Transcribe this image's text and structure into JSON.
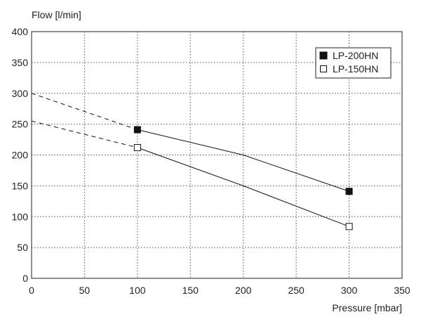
{
  "chart_data": {
    "type": "line",
    "xlabel": "Pressure [mbar]",
    "ylabel": "Flow [l/min]",
    "xlim": [
      0,
      350
    ],
    "ylim": [
      0,
      400
    ],
    "x_ticks": [
      0,
      50,
      100,
      150,
      200,
      250,
      300,
      350
    ],
    "y_ticks": [
      0,
      50,
      100,
      150,
      200,
      250,
      300,
      350,
      400
    ],
    "grid": "dotted",
    "legend_position": "top-right",
    "series": [
      {
        "name": "LP-200HN",
        "marker": "filled-square",
        "color": "#111111",
        "points": [
          {
            "x": 100,
            "y": 241
          },
          {
            "x": 300,
            "y": 141
          }
        ],
        "line": [
          {
            "x": 100,
            "y": 241
          },
          {
            "x": 200,
            "y": 200
          },
          {
            "x": 300,
            "y": 141
          }
        ],
        "extrapolation": [
          {
            "x": 0,
            "y": 300
          },
          {
            "x": 100,
            "y": 241
          }
        ]
      },
      {
        "name": "LP-150HN",
        "marker": "open-square",
        "color": "#111111",
        "points": [
          {
            "x": 100,
            "y": 212
          },
          {
            "x": 300,
            "y": 84
          }
        ],
        "line": [
          {
            "x": 100,
            "y": 212
          },
          {
            "x": 200,
            "y": 150
          },
          {
            "x": 300,
            "y": 84
          }
        ],
        "extrapolation": [
          {
            "x": 0,
            "y": 255
          },
          {
            "x": 100,
            "y": 212
          }
        ]
      }
    ]
  }
}
